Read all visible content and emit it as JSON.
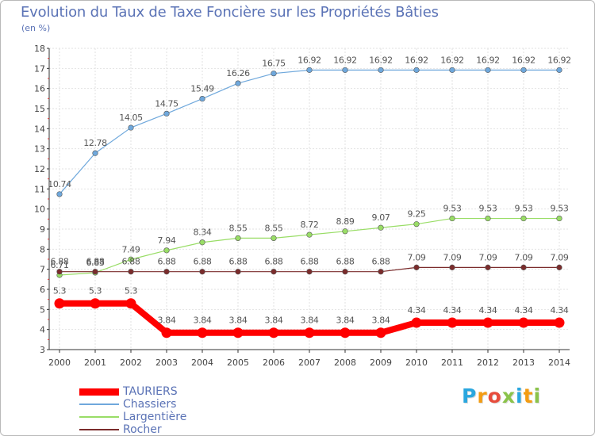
{
  "chart_data": {
    "type": "line",
    "title": "Evolution du Taux de Taxe Foncière sur les Propriétés Bâties",
    "ylabel": "(en %)",
    "xlabel": "",
    "ylim": [
      3,
      18
    ],
    "yticks": [
      3,
      4,
      5,
      6,
      7,
      8,
      9,
      10,
      11,
      12,
      13,
      14,
      15,
      16,
      17,
      18
    ],
    "x": [
      "2000",
      "2001",
      "2002",
      "2003",
      "2004",
      "2005",
      "2006",
      "2007",
      "2008",
      "2009",
      "2010",
      "2011",
      "2012",
      "2013",
      "2014"
    ],
    "grid": true,
    "legend_position": "bottom-left",
    "series": [
      {
        "name": "TAURIERS",
        "color": "#ff0000",
        "values": [
          5.3,
          5.3,
          5.3,
          3.84,
          3.84,
          3.84,
          3.84,
          3.84,
          3.84,
          3.84,
          4.34,
          4.34,
          4.34,
          4.34,
          4.34
        ],
        "labels": [
          "5.3",
          "5.3",
          "5.3",
          "3.84",
          "3.84",
          "3.84",
          "3.84",
          "3.84",
          "3.84",
          "3.84",
          "4.34",
          "4.34",
          "4.34",
          "4.34",
          "4.34"
        ]
      },
      {
        "name": "Chassiers",
        "color": "#6fa8dc",
        "values": [
          10.74,
          12.78,
          14.05,
          14.75,
          15.49,
          16.26,
          16.75,
          16.92,
          16.92,
          16.92,
          16.92,
          16.92,
          16.92,
          16.92,
          16.92
        ],
        "labels": [
          "10.74",
          "12.78",
          "14.05",
          "14.75",
          "15.49",
          "16.26",
          "16.75",
          "16.92",
          "16.92",
          "16.92",
          "16.92",
          "16.92",
          "16.92",
          "16.92",
          "16.92"
        ]
      },
      {
        "name": "Largentière",
        "color": "#99dd66",
        "values": [
          6.71,
          6.83,
          7.49,
          7.94,
          8.34,
          8.55,
          8.55,
          8.72,
          8.89,
          9.07,
          9.25,
          9.53,
          9.53,
          9.53,
          9.53
        ],
        "labels": [
          "6.71",
          "6.83",
          "7.49",
          "7.94",
          "8.34",
          "8.55",
          "8.55",
          "8.72",
          "8.89",
          "9.07",
          "9.25",
          "9.53",
          "9.53",
          "9.53",
          "9.53"
        ]
      },
      {
        "name": "Rocher",
        "color": "#7b2c2c",
        "values": [
          6.88,
          6.88,
          6.88,
          6.88,
          6.88,
          6.88,
          6.88,
          6.88,
          6.88,
          6.88,
          7.09,
          7.09,
          7.09,
          7.09,
          7.09
        ],
        "labels": [
          "6.88",
          "6.88",
          "6.88",
          "6.88",
          "6.88",
          "6.88",
          "6.88",
          "6.88",
          "6.88",
          "6.88",
          "7.09",
          "7.09",
          "7.09",
          "7.09",
          "7.09"
        ]
      }
    ]
  },
  "logo": {
    "letters": [
      "P",
      "r",
      "o",
      "x",
      "i",
      "t",
      "i"
    ],
    "colors": [
      "#2aa7df",
      "#f39c12",
      "#e74c3c",
      "#8bc34a",
      "#2aa7df",
      "#f39c12",
      "#8bc34a"
    ]
  }
}
